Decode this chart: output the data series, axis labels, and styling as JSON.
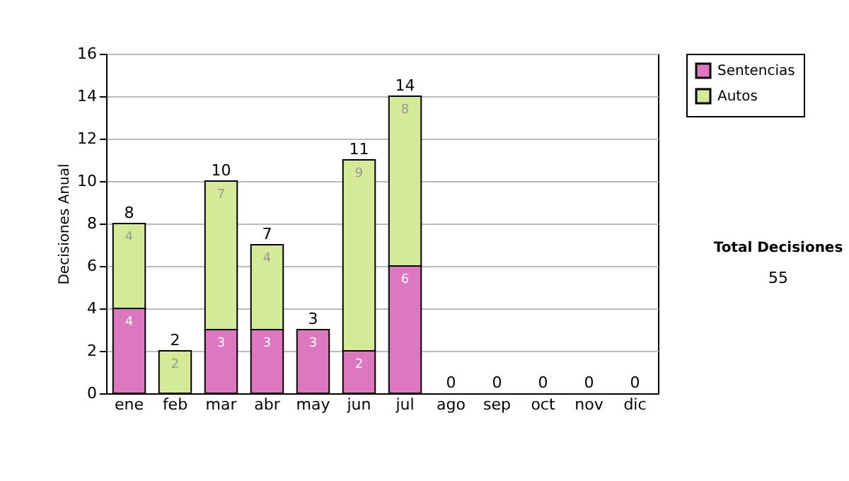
{
  "chart_data": {
    "type": "bar",
    "stacked": true,
    "ylabel": "Decisiones Anual",
    "categories": [
      "ene",
      "feb",
      "mar",
      "abr",
      "may",
      "jun",
      "jul",
      "ago",
      "sep",
      "oct",
      "nov",
      "dic"
    ],
    "series": [
      {
        "name": "Sentencias",
        "color": "#dd78c0",
        "values": [
          4,
          0,
          3,
          3,
          3,
          2,
          6,
          0,
          0,
          0,
          0,
          0
        ],
        "value_labels": [
          "4",
          null,
          "3",
          "3",
          "3",
          "2",
          "6",
          null,
          null,
          null,
          null,
          null
        ]
      },
      {
        "name": "Autos",
        "color": "#d4ea96",
        "values": [
          4,
          2,
          7,
          4,
          0,
          9,
          8,
          0,
          0,
          0,
          0,
          0
        ],
        "value_labels": [
          "4",
          "2",
          "7",
          "4",
          null,
          "9",
          "8",
          null,
          null,
          null,
          null,
          null
        ]
      }
    ],
    "totals": [
      "8",
      "2",
      "10",
      "7",
      "3",
      "11",
      "14",
      "0",
      "0",
      "0",
      "0",
      "0"
    ],
    "ylim": [
      0,
      16
    ],
    "yticks": [
      0,
      2,
      4,
      6,
      8,
      10,
      12,
      14,
      16
    ],
    "grid": "y",
    "legend": "right",
    "annotations": [
      "Total Decisiones",
      "55"
    ]
  }
}
